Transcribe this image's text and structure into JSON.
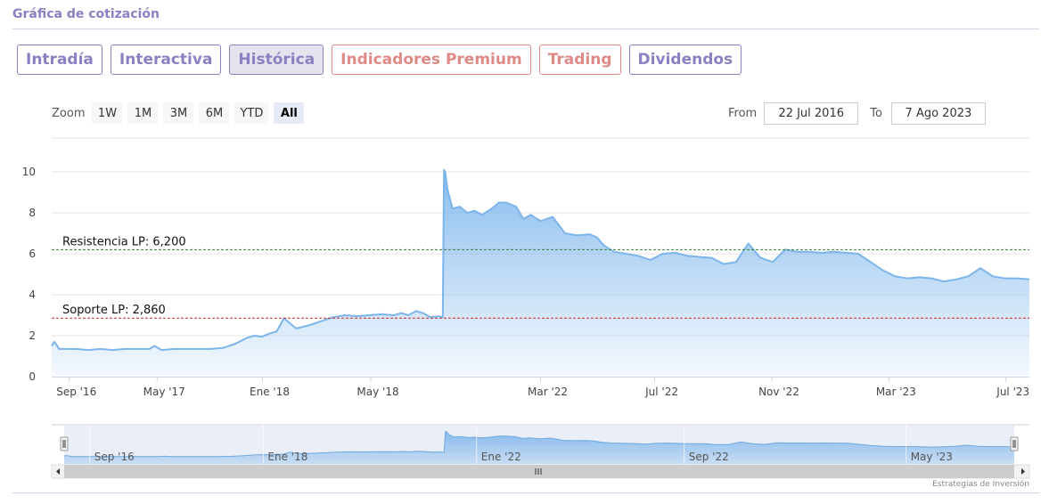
{
  "section_title": "Gráfica de cotización",
  "tabs": [
    {
      "label": "Intradía",
      "style": "normal"
    },
    {
      "label": "Interactiva",
      "style": "normal"
    },
    {
      "label": "Histórica",
      "style": "active"
    },
    {
      "label": "Indicadores Premium",
      "style": "premium"
    },
    {
      "label": "Trading",
      "style": "premium"
    },
    {
      "label": "Dividendos",
      "style": "normal"
    }
  ],
  "zoom": {
    "label": "Zoom",
    "buttons": [
      "1W",
      "1M",
      "3M",
      "6M",
      "YTD",
      "All"
    ],
    "selected": "All"
  },
  "range": {
    "from_label": "From",
    "from_value": "22 Jul 2016",
    "to_label": "To",
    "to_value": "7 Ago 2023"
  },
  "credit": "Estrategias de Inversión",
  "colors": {
    "accent": "#8a80c2",
    "premium": "#e08a88",
    "series_line": "#7cb5ec",
    "resistance": "#2e7d32",
    "support": "#c62828"
  },
  "chart_data": {
    "type": "area",
    "ylim": [
      0,
      10
    ],
    "yticks": [
      0,
      2,
      4,
      6,
      8,
      10
    ],
    "xticks": [
      "Sep '16",
      "May '17",
      "Ene '18",
      "May '18",
      "Mar '22",
      "Jul '22",
      "Nov '22",
      "Mar '23",
      "Jul '23"
    ],
    "grid": true,
    "plot_lines": [
      {
        "label": "Resistencia LP: 6,200",
        "value": 6.2,
        "color": "#2e7d32"
      },
      {
        "label": "Soporte LP: 2,860",
        "value": 2.86,
        "color": "#c62828"
      }
    ],
    "series": [
      {
        "type": "area",
        "color": "#7cb5ec",
        "x": [
          0,
          0.05,
          0.1,
          0.2,
          0.3,
          1.0,
          1.5,
          2.0,
          2.5,
          3.0,
          3.5,
          4.0,
          4.2,
          4.5,
          5.0,
          5.5,
          6.0,
          6.5,
          7.0,
          7.5,
          8.0,
          8.3,
          8.6,
          8.9,
          9.2,
          9.5,
          10.0,
          10.5,
          11.0,
          11.5,
          12.0,
          12.5,
          13.0,
          13.5,
          14.0,
          14.3,
          14.6,
          14.9,
          15.2,
          15.5,
          15.8,
          16.0,
          16.05,
          16.1,
          16.2,
          16.4,
          16.7,
          17.0,
          17.3,
          17.6,
          18.0,
          18.3,
          18.6,
          19.0,
          19.3,
          19.6,
          20.0,
          20.5,
          21.0,
          21.5,
          22.0,
          22.3,
          22.6,
          23.0,
          23.5,
          24.0,
          24.5,
          25.0,
          25.5,
          26.0,
          26.5,
          27.0,
          27.5,
          28.0,
          28.5,
          29.0,
          29.5,
          30.0,
          30.5,
          31.0,
          31.5,
          32.0,
          32.5,
          33.0,
          33.5,
          34.0,
          34.5,
          35.0,
          35.5,
          36.0,
          36.5,
          37.0,
          37.5,
          38.0,
          38.5,
          39.0,
          39.5,
          40.0
        ],
        "values": [
          1.5,
          1.6,
          1.7,
          1.55,
          1.35,
          1.35,
          1.3,
          1.35,
          1.3,
          1.35,
          1.35,
          1.35,
          1.5,
          1.3,
          1.35,
          1.35,
          1.35,
          1.35,
          1.4,
          1.6,
          1.9,
          2.0,
          1.95,
          2.1,
          2.2,
          2.85,
          2.35,
          2.5,
          2.7,
          2.9,
          3.0,
          2.95,
          3.0,
          3.05,
          3.0,
          3.1,
          3.0,
          3.2,
          3.1,
          2.9,
          2.95,
          2.9,
          10.1,
          10.0,
          9.1,
          8.2,
          8.3,
          8.0,
          8.1,
          7.9,
          8.2,
          8.5,
          8.5,
          8.3,
          7.7,
          7.9,
          7.6,
          7.8,
          7.0,
          6.9,
          6.95,
          6.8,
          6.4,
          6.1,
          6.0,
          5.9,
          5.7,
          6.0,
          6.05,
          5.9,
          5.85,
          5.8,
          5.5,
          5.6,
          6.5,
          5.8,
          5.6,
          6.2,
          6.1,
          6.1,
          6.05,
          6.1,
          6.05,
          6.0,
          5.6,
          5.2,
          4.9,
          4.8,
          4.85,
          4.8,
          4.65,
          4.75,
          4.9,
          5.3,
          4.9,
          4.8,
          4.8,
          4.75
        ]
      }
    ]
  }
}
